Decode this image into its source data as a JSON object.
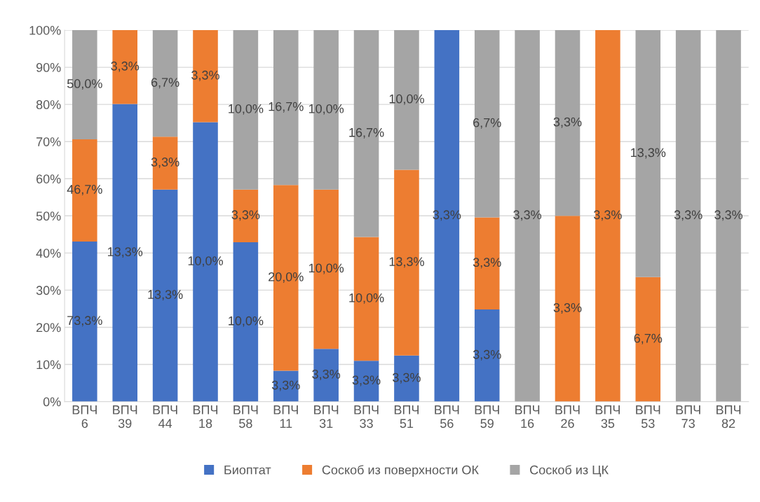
{
  "chart_data": {
    "type": "bar",
    "stacked": true,
    "categories": [
      "ВПЧ\n6",
      "ВПЧ\n39",
      "ВПЧ\n44",
      "ВПЧ\n18",
      "ВПЧ\n58",
      "ВПЧ\n11",
      "ВПЧ\n31",
      "ВПЧ\n33",
      "ВПЧ\n51",
      "ВПЧ\n56",
      "ВПЧ\n59",
      "ВПЧ\n16",
      "ВПЧ\n26",
      "ВПЧ\n35",
      "ВПЧ\n53",
      "ВПЧ\n73",
      "ВПЧ\n82"
    ],
    "series": [
      {
        "name": "Биоптат",
        "color": "#4472c4",
        "values": [
          43.1,
          80.1,
          57.1,
          75.2,
          42.9,
          8.3,
          14.2,
          11.0,
          12.4,
          100,
          24.8,
          0,
          0,
          0,
          0,
          0,
          0
        ]
      },
      {
        "name": "Соскоб из поверхности ОК",
        "color": "#ed7d31",
        "values": [
          27.5,
          19.9,
          14.2,
          24.8,
          14.2,
          50.0,
          42.9,
          33.3,
          50.0,
          0,
          24.8,
          0,
          50,
          100,
          33.5,
          0,
          0
        ]
      },
      {
        "name": "Соскоб из ЦК",
        "color": "#a5a5a5",
        "values": [
          29.4,
          0,
          28.7,
          0,
          42.9,
          41.7,
          42.9,
          55.7,
          37.6,
          0,
          50.4,
          100,
          50,
          0,
          66.5,
          100,
          100
        ]
      }
    ],
    "annotations": [
      "73,3%",
      "13,3%",
      "13,3%",
      "10,0%",
      "10,0%",
      "3,3%",
      "3,3%",
      "3,3%",
      "3,3%",
      "3,3%",
      "3,3%",
      "46,7%",
      "3,3%",
      "3,3%",
      "3,3%",
      "3,3%",
      "20,0%",
      "10,0%",
      "10,0%",
      "13,3%",
      "3,3%",
      "3,3%",
      "3,3%",
      "6,7%",
      "50,0%",
      "6,7%",
      "10,0%",
      "16,7%",
      "10,0%",
      "16,7%",
      "10,0%",
      "6,7%",
      "3,3%",
      "3,3%",
      "13,3%",
      "3,3%",
      "3,3%"
    ],
    "ylim": [
      0,
      100
    ],
    "yticks": [
      {
        "value": 0,
        "label": "0%"
      },
      {
        "value": 10,
        "label": "10%"
      },
      {
        "value": 20,
        "label": "20%"
      },
      {
        "value": 30,
        "label": "30%"
      },
      {
        "value": 40,
        "label": "40%"
      },
      {
        "value": 50,
        "label": "50%"
      },
      {
        "value": 60,
        "label": "60%"
      },
      {
        "value": 70,
        "label": "70%"
      },
      {
        "value": 80,
        "label": "80%"
      },
      {
        "value": 90,
        "label": "90%"
      },
      {
        "value": 100,
        "label": "100%"
      }
    ],
    "grid": "y",
    "legend": "bottom"
  }
}
